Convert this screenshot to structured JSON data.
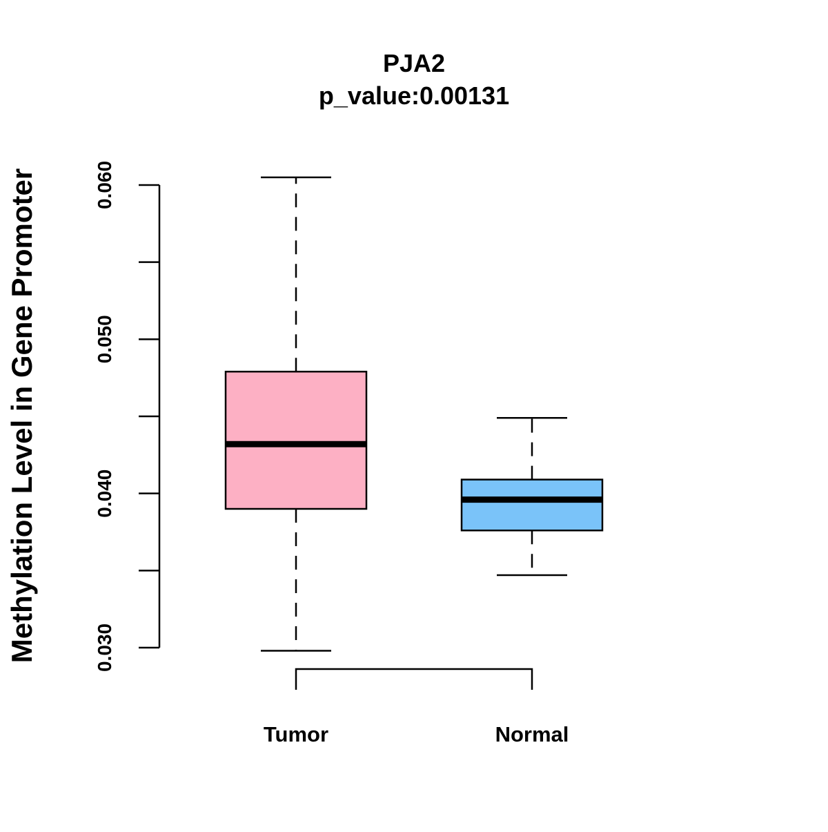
{
  "chart_data": {
    "type": "boxplot",
    "title": "PJA2",
    "subtitle": "p_value:0.00131",
    "xlabel": "",
    "ylabel": "Methylation Level in Gene Promoter",
    "ylim": [
      0.03,
      0.06
    ],
    "y_ticks": [
      0.03,
      0.035,
      0.04,
      0.045,
      0.05,
      0.055,
      0.06
    ],
    "y_tick_labels": [
      "0.030",
      "",
      "0.040",
      "",
      "0.050",
      "",
      "0.060"
    ],
    "grid": false,
    "categories": [
      "Tumor",
      "Normal"
    ],
    "boxes": [
      {
        "name": "Tumor",
        "whisker_low": 0.0298,
        "q1": 0.039,
        "median": 0.0432,
        "q3": 0.0479,
        "whisker_high": 0.0605,
        "color": "#FDB0C4"
      },
      {
        "name": "Normal",
        "whisker_low": 0.0347,
        "q1": 0.0376,
        "median": 0.0396,
        "q3": 0.0409,
        "whisker_high": 0.0449,
        "color": "#7AC3F9"
      }
    ],
    "comparison_bracket": {
      "between": [
        "Tumor",
        "Normal"
      ]
    }
  }
}
